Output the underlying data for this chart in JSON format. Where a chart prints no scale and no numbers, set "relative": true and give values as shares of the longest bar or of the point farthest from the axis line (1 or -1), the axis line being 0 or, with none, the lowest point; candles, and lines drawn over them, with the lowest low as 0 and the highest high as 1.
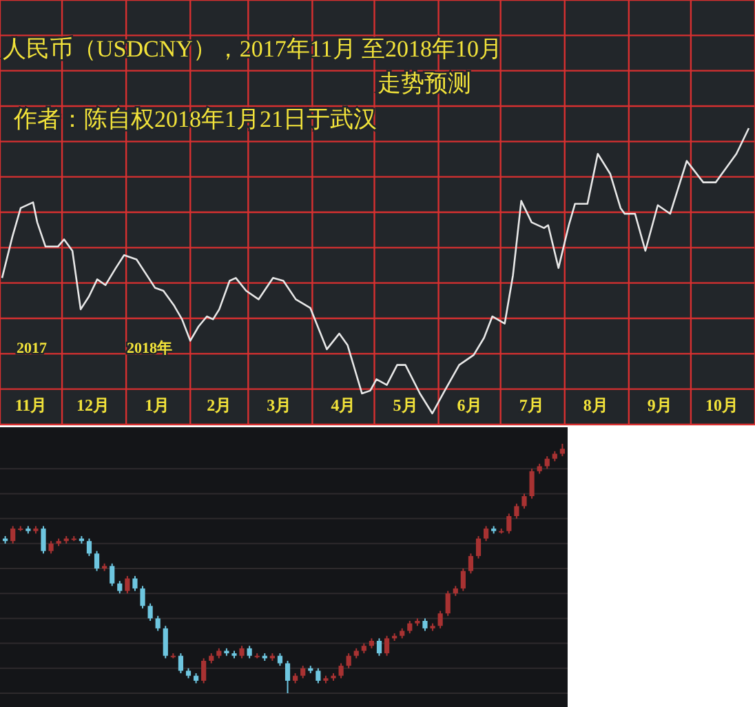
{
  "chart_data": [
    {
      "type": "line",
      "title": "人民币（USDCNY），2017年11月 至2018年10月",
      "subtitle": "走势预测",
      "annotations": [
        "作者：陈自权2018年1月21日于武汉",
        "2017",
        "2018年"
      ],
      "relative": true,
      "grid": true,
      "color": "#e8e8e8",
      "xlim": [
        "2017-11-01",
        "2018-11-01"
      ],
      "xticks": [
        {
          "value": "2017-11-01",
          "label": null
        },
        {
          "value": "2017-11-16",
          "label": "11月"
        },
        {
          "value": "2017-12-01",
          "label": null
        },
        {
          "value": "2017-12-16",
          "label": "12月"
        },
        {
          "value": "2018-01-01",
          "label": null
        },
        {
          "value": "2018-01-16",
          "label": "1月"
        },
        {
          "value": "2018-02-01",
          "label": null
        },
        {
          "value": "2018-02-15",
          "label": "2月"
        },
        {
          "value": "2018-03-01",
          "label": null
        },
        {
          "value": "2018-03-16",
          "label": "3月"
        },
        {
          "value": "2018-04-01",
          "label": null
        },
        {
          "value": "2018-04-16",
          "label": "4月"
        },
        {
          "value": "2018-05-01",
          "label": null
        },
        {
          "value": "2018-05-16",
          "label": "5月"
        },
        {
          "value": "2018-06-01",
          "label": null
        },
        {
          "value": "2018-06-16",
          "label": "6月"
        },
        {
          "value": "2018-07-01",
          "label": null
        },
        {
          "value": "2018-07-16",
          "label": "7月"
        },
        {
          "value": "2018-08-01",
          "label": null
        },
        {
          "value": "2018-08-16",
          "label": "8月"
        },
        {
          "value": "2018-09-01",
          "label": null
        },
        {
          "value": "2018-09-16",
          "label": "9月"
        },
        {
          "value": "2018-10-01",
          "label": null
        },
        {
          "value": "2018-10-16",
          "label": "10月"
        },
        {
          "value": "2018-11-01",
          "label": null
        }
      ],
      "x": [
        "2017-11-02",
        "2017-11-07",
        "2017-11-11",
        "2017-11-17",
        "2017-11-19",
        "2017-11-23",
        "2017-11-29",
        "2017-12-02",
        "2017-12-06",
        "2017-12-10",
        "2017-12-14",
        "2017-12-18",
        "2017-12-22",
        "2017-12-27",
        "2017-12-31",
        "2018-01-06",
        "2018-01-15",
        "2018-01-19",
        "2018-01-24",
        "2018-01-28",
        "2018-02-01",
        "2018-02-05",
        "2018-02-09",
        "2018-02-12",
        "2018-02-15",
        "2018-02-20",
        "2018-02-23",
        "2018-02-28",
        "2018-03-06",
        "2018-03-13",
        "2018-03-18",
        "2018-03-24",
        "2018-03-31",
        "2018-04-08",
        "2018-04-14",
        "2018-04-18",
        "2018-04-25",
        "2018-04-29",
        "2018-05-02",
        "2018-05-07",
        "2018-05-12",
        "2018-05-16",
        "2018-05-23",
        "2018-05-29",
        "2018-06-04",
        "2018-06-11",
        "2018-06-18",
        "2018-06-23",
        "2018-06-27",
        "2018-07-03",
        "2018-07-07",
        "2018-07-11",
        "2018-07-16",
        "2018-07-22",
        "2018-07-24",
        "2018-07-29",
        "2018-08-03",
        "2018-08-06",
        "2018-08-12",
        "2018-08-17",
        "2018-08-23",
        "2018-08-28",
        "2018-08-30",
        "2018-09-04",
        "2018-09-09",
        "2018-09-15",
        "2018-09-21",
        "2018-09-29",
        "2018-10-07",
        "2018-10-13",
        "2018-10-23",
        "2018-10-29"
      ],
      "values": [
        0.475,
        0.62,
        0.72,
        0.74,
        0.67,
        0.585,
        0.585,
        0.61,
        0.57,
        0.365,
        0.41,
        0.47,
        0.45,
        0.51,
        0.555,
        0.54,
        0.44,
        0.43,
        0.38,
        0.33,
        0.255,
        0.305,
        0.34,
        0.33,
        0.365,
        0.465,
        0.475,
        0.43,
        0.4,
        0.475,
        0.465,
        0.4,
        0.37,
        0.225,
        0.28,
        0.24,
        0.07,
        0.08,
        0.12,
        0.1,
        0.17,
        0.17,
        0.07,
        0.0,
        0.08,
        0.17,
        0.205,
        0.265,
        0.34,
        0.315,
        0.485,
        0.745,
        0.67,
        0.65,
        0.66,
        0.51,
        0.66,
        0.735,
        0.735,
        0.91,
        0.84,
        0.72,
        0.7,
        0.7,
        0.57,
        0.73,
        0.7,
        0.885,
        0.81,
        0.81,
        0.91,
        1.0
      ]
    },
    {
      "type": "candlestick",
      "relative": true,
      "grid": true,
      "categories": [
        null,
        null,
        null,
        null,
        null,
        null,
        null,
        null,
        null,
        null,
        null,
        null,
        null,
        null,
        null,
        null,
        null,
        null,
        null,
        null,
        null,
        null,
        null,
        null,
        null,
        null,
        null,
        null,
        null,
        null,
        null,
        null,
        null,
        null,
        null,
        null,
        null,
        null,
        null,
        null,
        null,
        null,
        null,
        null,
        null,
        null,
        null,
        null,
        null,
        null,
        null,
        null,
        null,
        null,
        null,
        null,
        null,
        null,
        null,
        null,
        null,
        null,
        null,
        null,
        null,
        null,
        null,
        null,
        null,
        null,
        null,
        null,
        null,
        null
      ],
      "ohlc": [
        [
          0.62,
          0.63,
          0.6,
          0.61
        ],
        [
          0.61,
          0.67,
          0.6,
          0.66
        ],
        [
          0.66,
          0.67,
          0.65,
          0.66
        ],
        [
          0.66,
          0.67,
          0.64,
          0.65
        ],
        [
          0.65,
          0.67,
          0.64,
          0.66
        ],
        [
          0.66,
          0.67,
          0.56,
          0.57
        ],
        [
          0.57,
          0.61,
          0.56,
          0.6
        ],
        [
          0.6,
          0.62,
          0.59,
          0.61
        ],
        [
          0.61,
          0.63,
          0.6,
          0.62
        ],
        [
          0.62,
          0.63,
          0.61,
          0.62
        ],
        [
          0.62,
          0.63,
          0.6,
          0.61
        ],
        [
          0.61,
          0.62,
          0.55,
          0.56
        ],
        [
          0.56,
          0.57,
          0.49,
          0.5
        ],
        [
          0.5,
          0.52,
          0.49,
          0.51
        ],
        [
          0.51,
          0.52,
          0.43,
          0.44
        ],
        [
          0.44,
          0.45,
          0.4,
          0.41
        ],
        [
          0.41,
          0.47,
          0.4,
          0.46
        ],
        [
          0.46,
          0.47,
          0.41,
          0.42
        ],
        [
          0.42,
          0.43,
          0.34,
          0.35
        ],
        [
          0.35,
          0.36,
          0.29,
          0.3
        ],
        [
          0.3,
          0.31,
          0.25,
          0.26
        ],
        [
          0.26,
          0.27,
          0.14,
          0.15
        ],
        [
          0.15,
          0.16,
          0.14,
          0.15
        ],
        [
          0.15,
          0.16,
          0.08,
          0.09
        ],
        [
          0.09,
          0.1,
          0.06,
          0.07
        ],
        [
          0.07,
          0.08,
          0.04,
          0.05
        ],
        [
          0.05,
          0.14,
          0.04,
          0.13
        ],
        [
          0.13,
          0.16,
          0.12,
          0.15
        ],
        [
          0.15,
          0.18,
          0.14,
          0.17
        ],
        [
          0.17,
          0.18,
          0.15,
          0.16
        ],
        [
          0.16,
          0.17,
          0.14,
          0.15
        ],
        [
          0.15,
          0.19,
          0.14,
          0.18
        ],
        [
          0.18,
          0.19,
          0.14,
          0.15
        ],
        [
          0.15,
          0.16,
          0.14,
          0.15
        ],
        [
          0.15,
          0.16,
          0.13,
          0.14
        ],
        [
          0.14,
          0.16,
          0.13,
          0.15
        ],
        [
          0.15,
          0.16,
          0.11,
          0.12
        ],
        [
          0.12,
          0.13,
          0.0,
          0.05
        ],
        [
          0.05,
          0.08,
          0.04,
          0.07
        ],
        [
          0.07,
          0.11,
          0.06,
          0.1
        ],
        [
          0.1,
          0.11,
          0.08,
          0.09
        ],
        [
          0.09,
          0.1,
          0.04,
          0.05
        ],
        [
          0.05,
          0.07,
          0.04,
          0.06
        ],
        [
          0.06,
          0.08,
          0.05,
          0.07
        ],
        [
          0.07,
          0.12,
          0.06,
          0.11
        ],
        [
          0.11,
          0.16,
          0.1,
          0.15
        ],
        [
          0.15,
          0.18,
          0.14,
          0.17
        ],
        [
          0.17,
          0.2,
          0.16,
          0.19
        ],
        [
          0.19,
          0.22,
          0.18,
          0.21
        ],
        [
          0.21,
          0.22,
          0.15,
          0.16
        ],
        [
          0.16,
          0.23,
          0.15,
          0.22
        ],
        [
          0.22,
          0.24,
          0.21,
          0.23
        ],
        [
          0.23,
          0.26,
          0.22,
          0.25
        ],
        [
          0.25,
          0.29,
          0.24,
          0.28
        ],
        [
          0.28,
          0.3,
          0.27,
          0.29
        ],
        [
          0.29,
          0.3,
          0.25,
          0.26
        ],
        [
          0.26,
          0.28,
          0.25,
          0.27
        ],
        [
          0.27,
          0.33,
          0.26,
          0.32
        ],
        [
          0.32,
          0.41,
          0.31,
          0.4
        ],
        [
          0.4,
          0.43,
          0.39,
          0.42
        ],
        [
          0.42,
          0.5,
          0.41,
          0.49
        ],
        [
          0.49,
          0.56,
          0.48,
          0.55
        ],
        [
          0.55,
          0.63,
          0.54,
          0.62
        ],
        [
          0.62,
          0.67,
          0.61,
          0.66
        ],
        [
          0.66,
          0.67,
          0.64,
          0.65
        ],
        [
          0.65,
          0.66,
          0.64,
          0.65
        ],
        [
          0.65,
          0.72,
          0.64,
          0.71
        ],
        [
          0.71,
          0.76,
          0.7,
          0.75
        ],
        [
          0.75,
          0.8,
          0.74,
          0.79
        ],
        [
          0.79,
          0.9,
          0.78,
          0.89
        ],
        [
          0.89,
          0.92,
          0.88,
          0.91
        ],
        [
          0.91,
          0.95,
          0.9,
          0.94
        ],
        [
          0.94,
          0.97,
          0.93,
          0.96
        ],
        [
          0.96,
          1.0,
          0.95,
          0.98
        ]
      ],
      "colors": [
        "#6ec6e0",
        "#a83232",
        "#a83232",
        "#6ec6e0",
        "#a83232",
        "#6ec6e0",
        "#a83232",
        "#a83232",
        "#a83232",
        "#a83232",
        "#6ec6e0",
        "#6ec6e0",
        "#6ec6e0",
        "#a83232",
        "#6ec6e0",
        "#6ec6e0",
        "#a83232",
        "#6ec6e0",
        "#6ec6e0",
        "#6ec6e0",
        "#6ec6e0",
        "#6ec6e0",
        "#a83232",
        "#6ec6e0",
        "#6ec6e0",
        "#6ec6e0",
        "#a83232",
        "#a83232",
        "#a83232",
        "#6ec6e0",
        "#6ec6e0",
        "#a83232",
        "#6ec6e0",
        "#a83232",
        "#6ec6e0",
        "#a83232",
        "#6ec6e0",
        "#6ec6e0",
        "#a83232",
        "#a83232",
        "#6ec6e0",
        "#6ec6e0",
        "#a83232",
        "#a83232",
        "#a83232",
        "#a83232",
        "#a83232",
        "#a83232",
        "#a83232",
        "#6ec6e0",
        "#a83232",
        "#a83232",
        "#a83232",
        "#a83232",
        "#a83232",
        "#6ec6e0",
        "#a83232",
        "#a83232",
        "#a83232",
        "#a83232",
        "#a83232",
        "#a83232",
        "#a83232",
        "#a83232",
        "#6ec6e0",
        "#a83232",
        "#a83232",
        "#a83232",
        "#a83232",
        "#a83232",
        "#a83232",
        "#a83232",
        "#a83232",
        "#a83232"
      ]
    }
  ]
}
